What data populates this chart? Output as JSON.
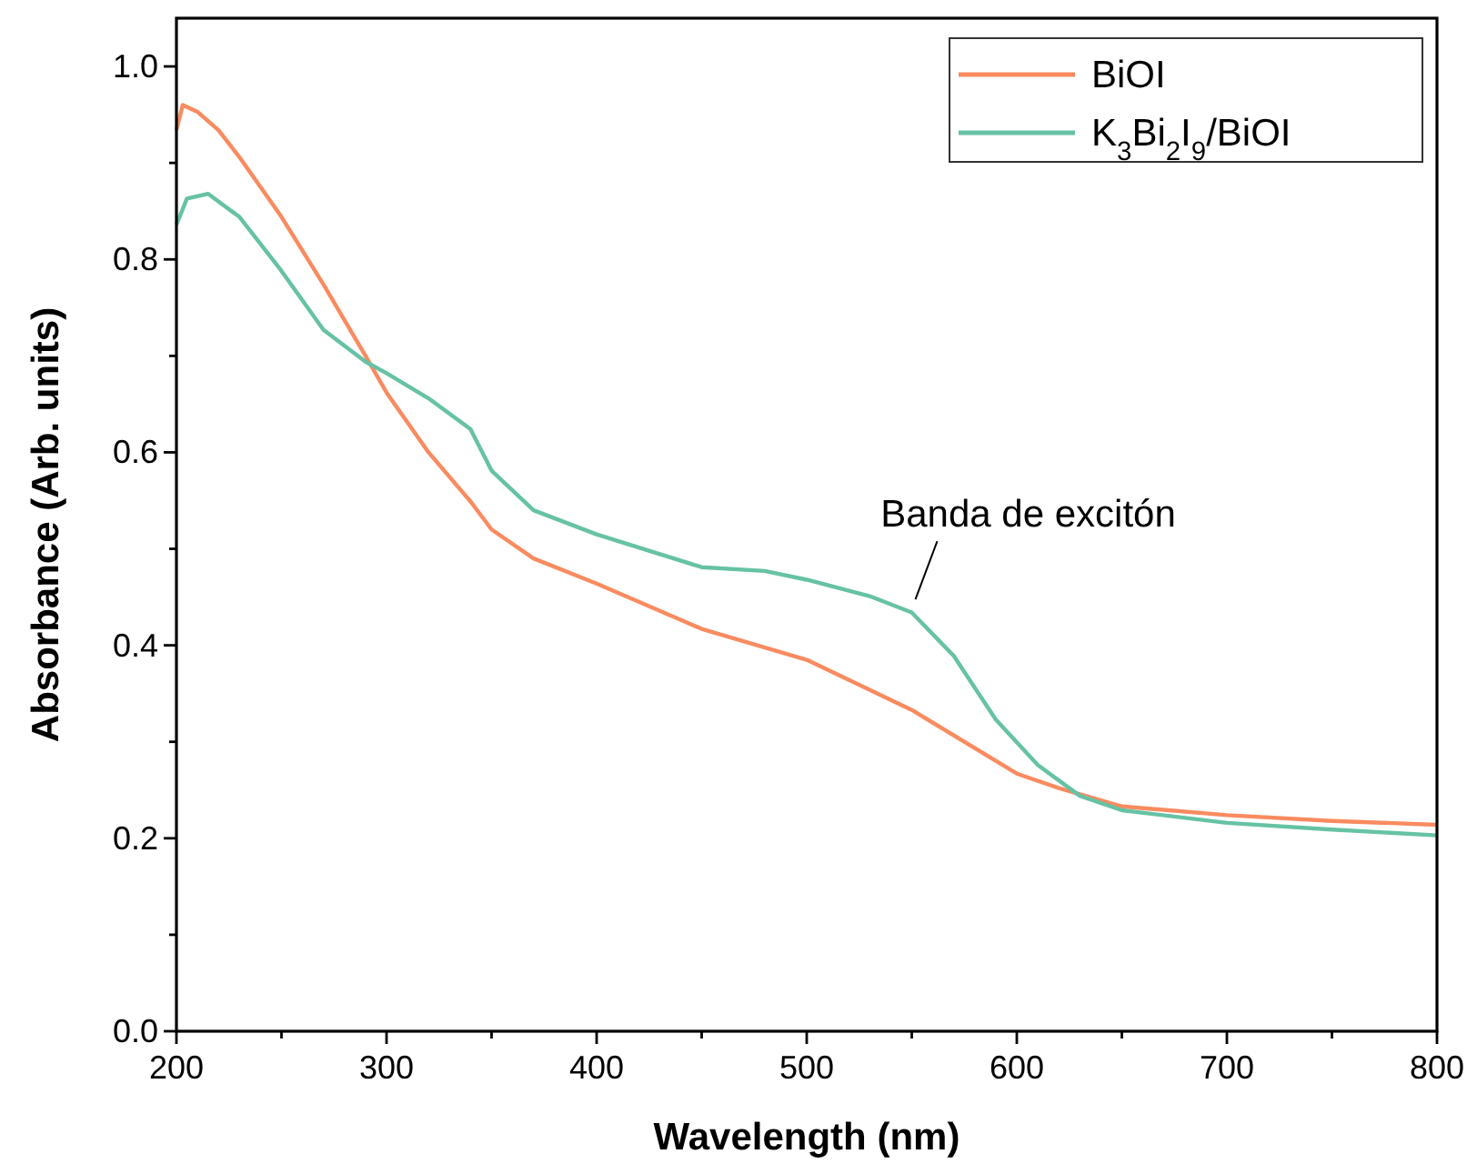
{
  "chart_data": {
    "type": "line",
    "xlabel": "Wavelength (nm)",
    "ylabel": "Absorbance (Arb. units)",
    "xlim": [
      200,
      800
    ],
    "ylim": [
      0,
      1.05
    ],
    "xticks": [
      200,
      {
        "value": 250,
        "label": null
      },
      300,
      {
        "value": 350,
        "label": null
      },
      400,
      {
        "value": 450,
        "label": null
      },
      500,
      {
        "value": 550,
        "label": null
      },
      600,
      {
        "value": 650,
        "label": null
      },
      700,
      {
        "value": 750,
        "label": null
      },
      800
    ],
    "yticks": [
      {
        "value": 0,
        "label": "0.0"
      },
      {
        "value": 0.1,
        "label": null
      },
      0.2,
      {
        "value": 0.3,
        "label": null
      },
      0.4,
      {
        "value": 0.5,
        "label": null
      },
      0.6,
      {
        "value": 0.7,
        "label": null
      },
      0.8,
      {
        "value": 0.9,
        "label": null
      },
      {
        "value": 1,
        "label": "1.0"
      }
    ],
    "legend": "top right",
    "grid": false,
    "marker": "none",
    "line_style": "solid",
    "series": [
      {
        "name": "BiOI",
        "color": "#f98b60",
        "x": [
          200,
          203,
          210,
          220,
          230,
          250,
          270,
          290,
          300,
          320,
          340,
          350,
          370,
          400,
          450,
          500,
          550,
          600,
          620,
          650,
          700,
          750,
          800
        ],
        "values": [
          0.934,
          0.96,
          0.953,
          0.934,
          0.906,
          0.844,
          0.774,
          0.7,
          0.662,
          0.6,
          0.549,
          0.52,
          0.49,
          0.464,
          0.417,
          0.385,
          0.333,
          0.267,
          0.252,
          0.233,
          0.224,
          0.218,
          0.214
        ]
      },
      {
        "name": "K$_{3}$Bi$_{2}$I$_{9}$/BiOI",
        "color": "#66c2a5",
        "x": [
          200,
          205,
          215,
          230,
          250,
          270,
          290,
          300,
          320,
          340,
          350,
          370,
          400,
          450,
          480,
          500,
          530,
          550,
          570,
          590,
          610,
          630,
          650,
          700,
          750,
          800
        ],
        "values": [
          0.836,
          0.863,
          0.868,
          0.844,
          0.788,
          0.727,
          0.694,
          0.682,
          0.656,
          0.624,
          0.581,
          0.54,
          0.515,
          0.481,
          0.477,
          0.468,
          0.451,
          0.434,
          0.389,
          0.323,
          0.276,
          0.244,
          0.229,
          0.216,
          0.209,
          0.203
        ]
      }
    ],
    "annotations": [
      {
        "text": "Banda de excitón",
        "x": 550,
        "y": 0.44
      }
    ]
  }
}
